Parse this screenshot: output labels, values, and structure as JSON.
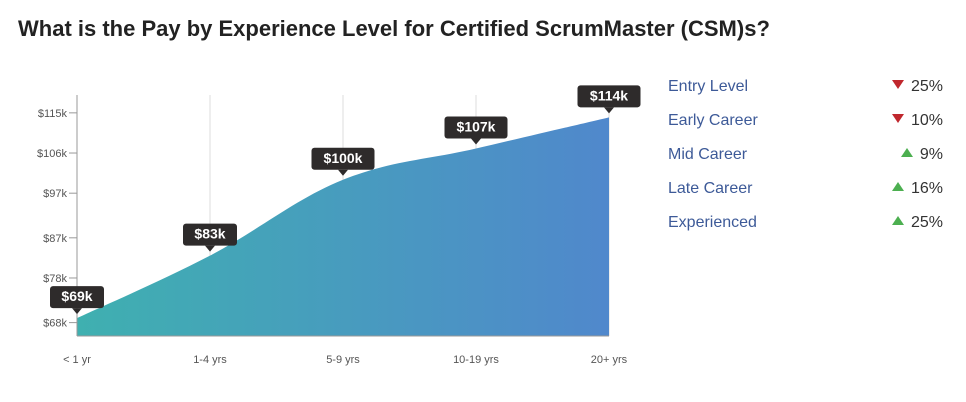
{
  "title": "What is the Pay by Experience Level for Certified ScrumMaster (CSM)s?",
  "colors": {
    "area_start": "#3fb0b0",
    "area_end": "#5088cc",
    "down": "#c0272d",
    "up": "#4caf50",
    "tooltip_bg": "#2e2b2b"
  },
  "chart_data": {
    "type": "area",
    "categories": [
      "< 1 yr",
      "1-4 yrs",
      "5-9 yrs",
      "10-19 yrs",
      "20+ yrs"
    ],
    "values": [
      69,
      83,
      100,
      107,
      114
    ],
    "data_labels": [
      "$69k",
      "$83k",
      "$100k",
      "$107k",
      "$114k"
    ],
    "yticks": [
      68,
      78,
      87,
      97,
      106,
      115
    ],
    "ytick_labels": [
      "$68k",
      "$78k",
      "$87k",
      "$97k",
      "$106k",
      "$115k"
    ],
    "ylim": [
      65,
      119
    ],
    "grid": "vertical"
  },
  "legend": [
    {
      "label": "Entry Level",
      "direction": "down",
      "change": "25%"
    },
    {
      "label": "Early Career",
      "direction": "down",
      "change": "10%"
    },
    {
      "label": "Mid Career",
      "direction": "up",
      "change": "9%"
    },
    {
      "label": "Late Career",
      "direction": "up",
      "change": "16%"
    },
    {
      "label": "Experienced",
      "direction": "up",
      "change": "25%"
    }
  ]
}
